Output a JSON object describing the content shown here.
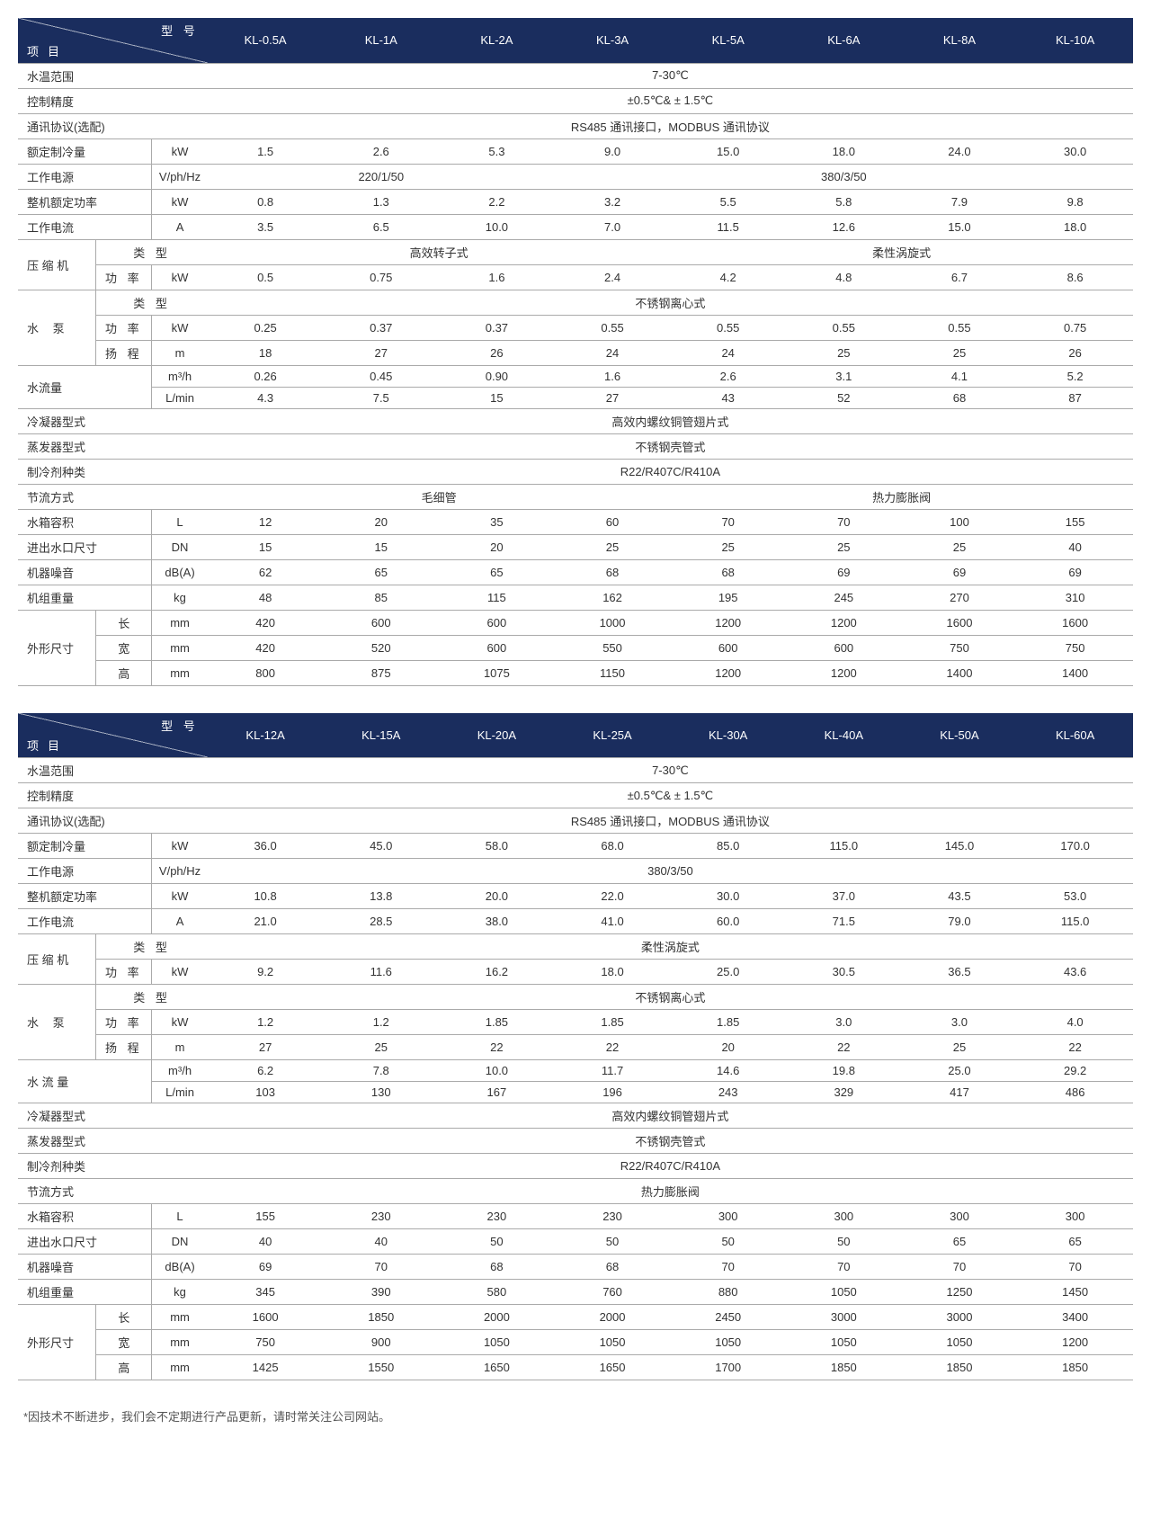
{
  "footnote": "*因技术不断进步，我们会不定期进行产品更新，请时常关注公司网站。",
  "corner": {
    "top": "型 号",
    "bottom": "项目"
  },
  "labels": {
    "waterTemp": "水温范围",
    "ctrlPrec": "控制精度",
    "protocol": "通讯协议(选配)",
    "coolCap": "额定制冷量",
    "power": "工作电源",
    "ratedPwr": "整机额定功率",
    "workCur": "工作电流",
    "compressor": "压 缩 机",
    "pump": "水 泵",
    "type": "类 型",
    "pwr": "功 率",
    "head": "扬 程",
    "flow": "水流量",
    "flowSp": "水 流 量",
    "cond": "冷凝器型式",
    "evap": "蒸发器型式",
    "refrig": "制冷剂种类",
    "throttle": "节流方式",
    "tank": "水箱容积",
    "inout": "进出水口尺寸",
    "noise": "机器噪音",
    "weight": "机组重量",
    "dim": "外形尺寸",
    "len": "长",
    "wid": "宽",
    "hgt": "高"
  },
  "units": {
    "kW": "kW",
    "VphHz": "V/ph/Hz",
    "A": "A",
    "m": "m",
    "m3h": "m³/h",
    "Lmin": "L/min",
    "L": "L",
    "DN": "DN",
    "dBA": "dB(A)",
    "kg": "kg",
    "mm": "mm"
  },
  "t1": {
    "models": [
      "KL-0.5A",
      "KL-1A",
      "KL-2A",
      "KL-3A",
      "KL-5A",
      "KL-6A",
      "KL-8A",
      "KL-10A"
    ],
    "waterTemp": "7-30℃",
    "ctrlPrec": "±0.5℃& ± 1.5℃",
    "protocol": "RS485 通讯接口，MODBUS 通讯协议",
    "coolCap": [
      "1.5",
      "2.6",
      "5.3",
      "9.0",
      "15.0",
      "18.0",
      "24.0",
      "30.0"
    ],
    "powerA": "220/1/50",
    "powerB": "380/3/50",
    "ratedPwr": [
      "0.8",
      "1.3",
      "2.2",
      "3.2",
      "5.5",
      "5.8",
      "7.9",
      "9.8"
    ],
    "workCur": [
      "3.5",
      "6.5",
      "10.0",
      "7.0",
      "11.5",
      "12.6",
      "15.0",
      "18.0"
    ],
    "compTypeA": "高效转子式",
    "compTypeB": "柔性涡旋式",
    "compPwr": [
      "0.5",
      "0.75",
      "1.6",
      "2.4",
      "4.2",
      "4.8",
      "6.7",
      "8.6"
    ],
    "pumpType": "不锈钢离心式",
    "pumpPwr": [
      "0.25",
      "0.37",
      "0.37",
      "0.55",
      "0.55",
      "0.55",
      "0.55",
      "0.75"
    ],
    "pumpHead": [
      "18",
      "27",
      "26",
      "24",
      "24",
      "25",
      "25",
      "26"
    ],
    "flowM3h": [
      "0.26",
      "0.45",
      "0.90",
      "1.6",
      "2.6",
      "3.1",
      "4.1",
      "5.2"
    ],
    "flowLmin": [
      "4.3",
      "7.5",
      "15",
      "27",
      "43",
      "52",
      "68",
      "87"
    ],
    "cond": "高效内螺纹铜管翅片式",
    "evap": "不锈钢壳管式",
    "refrig": "R22/R407C/R410A",
    "throttleA": "毛细管",
    "throttleB": "热力膨胀阀",
    "tank": [
      "12",
      "20",
      "35",
      "60",
      "70",
      "70",
      "100",
      "155"
    ],
    "inout": [
      "15",
      "15",
      "20",
      "25",
      "25",
      "25",
      "25",
      "40"
    ],
    "noise": [
      "62",
      "65",
      "65",
      "68",
      "68",
      "69",
      "69",
      "69"
    ],
    "weight": [
      "48",
      "85",
      "115",
      "162",
      "195",
      "245",
      "270",
      "310"
    ],
    "len": [
      "420",
      "600",
      "600",
      "1000",
      "1200",
      "1200",
      "1600",
      "1600"
    ],
    "wid": [
      "420",
      "520",
      "600",
      "550",
      "600",
      "600",
      "750",
      "750"
    ],
    "hgt": [
      "800",
      "875",
      "1075",
      "1150",
      "1200",
      "1200",
      "1400",
      "1400"
    ]
  },
  "t2": {
    "models": [
      "KL-12A",
      "KL-15A",
      "KL-20A",
      "KL-25A",
      "KL-30A",
      "KL-40A",
      "KL-50A",
      "KL-60A"
    ],
    "waterTemp": "7-30℃",
    "ctrlPrec": "±0.5℃& ± 1.5℃",
    "protocol": "RS485 通讯接口，MODBUS 通讯协议",
    "coolCap": [
      "36.0",
      "45.0",
      "58.0",
      "68.0",
      "85.0",
      "115.0",
      "145.0",
      "170.0"
    ],
    "power": "380/3/50",
    "ratedPwr": [
      "10.8",
      "13.8",
      "20.0",
      "22.0",
      "30.0",
      "37.0",
      "43.5",
      "53.0"
    ],
    "workCur": [
      "21.0",
      "28.5",
      "38.0",
      "41.0",
      "60.0",
      "71.5",
      "79.0",
      "115.0"
    ],
    "compType": "柔性涡旋式",
    "compPwr": [
      "9.2",
      "11.6",
      "16.2",
      "18.0",
      "25.0",
      "30.5",
      "36.5",
      "43.6"
    ],
    "pumpType": "不锈钢离心式",
    "pumpPwr": [
      "1.2",
      "1.2",
      "1.85",
      "1.85",
      "1.85",
      "3.0",
      "3.0",
      "4.0"
    ],
    "pumpHead": [
      "27",
      "25",
      "22",
      "22",
      "20",
      "22",
      "25",
      "22"
    ],
    "flowM3h": [
      "6.2",
      "7.8",
      "10.0",
      "11.7",
      "14.6",
      "19.8",
      "25.0",
      "29.2"
    ],
    "flowLmin": [
      "103",
      "130",
      "167",
      "196",
      "243",
      "329",
      "417",
      "486"
    ],
    "cond": "高效内螺纹铜管翅片式",
    "evap": "不锈钢壳管式",
    "refrig": "R22/R407C/R410A",
    "throttle": "热力膨胀阀",
    "tank": [
      "155",
      "230",
      "230",
      "230",
      "300",
      "300",
      "300",
      "300"
    ],
    "inout": [
      "40",
      "40",
      "50",
      "50",
      "50",
      "50",
      "65",
      "65"
    ],
    "noise": [
      "69",
      "70",
      "68",
      "68",
      "70",
      "70",
      "70",
      "70"
    ],
    "weight": [
      "345",
      "390",
      "580",
      "760",
      "880",
      "1050",
      "1250",
      "1450"
    ],
    "len": [
      "1600",
      "1850",
      "2000",
      "2000",
      "2450",
      "3000",
      "3000",
      "3400"
    ],
    "wid": [
      "750",
      "900",
      "1050",
      "1050",
      "1050",
      "1050",
      "1050",
      "1200"
    ],
    "hgt": [
      "1425",
      "1550",
      "1650",
      "1650",
      "1700",
      "1850",
      "1850",
      "1850"
    ]
  },
  "style": {
    "header_bg": "#1a2d5e",
    "header_color": "#ffffff",
    "border_color": "#aaaaaa",
    "text_color": "#333333",
    "font_size_pt": 10
  }
}
